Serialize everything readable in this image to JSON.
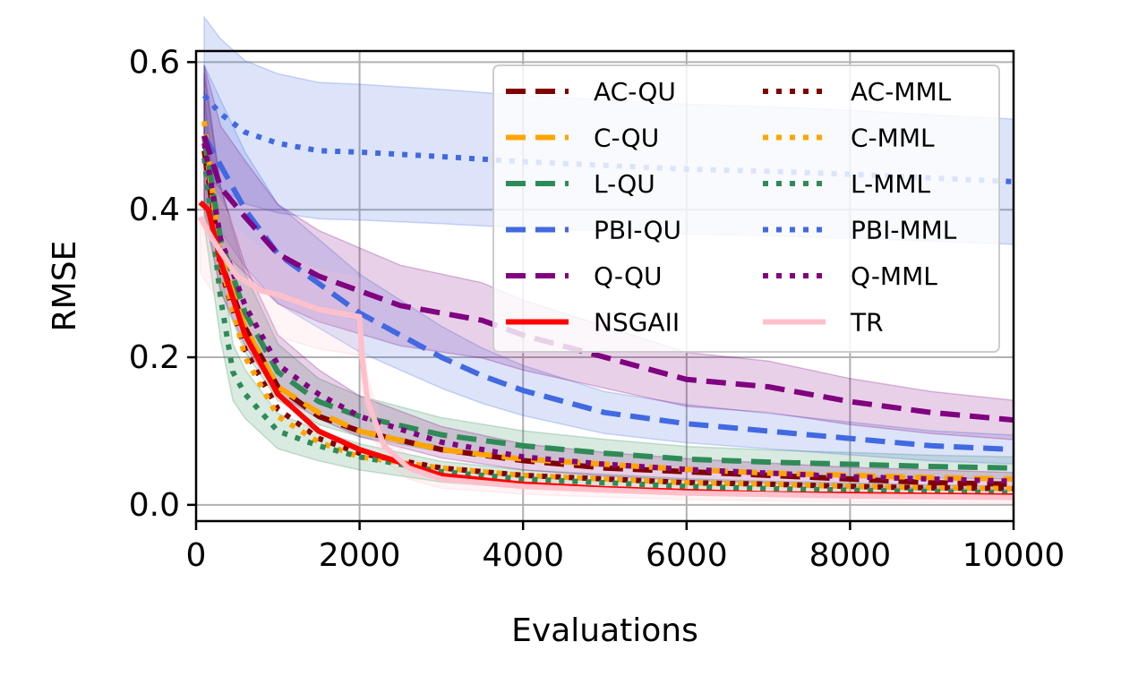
{
  "chart_data": {
    "type": "line",
    "title": "",
    "xlabel": "Evaluations",
    "ylabel": "RMSE",
    "xlim": [
      0,
      10000
    ],
    "ylim": [
      -0.022,
      0.615
    ],
    "xticks": [
      0,
      2000,
      4000,
      6000,
      8000,
      10000
    ],
    "yticks": [
      0.0,
      0.2,
      0.4,
      0.6
    ],
    "xtick_labels": [
      "0",
      "2000",
      "4000",
      "6000",
      "8000",
      "10000"
    ],
    "ytick_labels": [
      "0.0",
      "0.2",
      "0.4",
      "0.6"
    ],
    "grid": true,
    "legend_position": "top-right",
    "legend_columns": 2,
    "series": [
      {
        "name": "AC-QU",
        "color": "#800000",
        "dash": "dashed",
        "band": false,
        "x": [
          100,
          300,
          600,
          1000,
          1500,
          2000,
          3000,
          4000,
          5000,
          6000,
          7000,
          8000,
          9000,
          10000
        ],
        "y": [
          0.48,
          0.33,
          0.24,
          0.16,
          0.12,
          0.1,
          0.075,
          0.06,
          0.05,
          0.045,
          0.04,
          0.035,
          0.03,
          0.028
        ]
      },
      {
        "name": "AC-MML",
        "color": "#800000",
        "dash": "dotted",
        "band": false,
        "x": [
          100,
          300,
          600,
          1000,
          1500,
          2000,
          3000,
          4000,
          5000,
          6000,
          7000,
          8000,
          9000,
          10000
        ],
        "y": [
          0.5,
          0.32,
          0.21,
          0.13,
          0.09,
          0.07,
          0.05,
          0.04,
          0.035,
          0.03,
          0.028,
          0.025,
          0.023,
          0.022
        ]
      },
      {
        "name": "C-QU",
        "color": "#ffa500",
        "dash": "dashed",
        "band": false,
        "x": [
          100,
          300,
          600,
          1000,
          1500,
          2000,
          3000,
          4000,
          5000,
          6000,
          7000,
          8000,
          9000,
          10000
        ],
        "y": [
          0.5,
          0.34,
          0.24,
          0.16,
          0.125,
          0.1,
          0.075,
          0.062,
          0.055,
          0.048,
          0.043,
          0.04,
          0.037,
          0.035
        ]
      },
      {
        "name": "C-MML",
        "color": "#ffa500",
        "dash": "dotted",
        "band": false,
        "x": [
          100,
          300,
          600,
          1000,
          1500,
          2000,
          3000,
          4000,
          5000,
          6000,
          7000,
          8000,
          9000,
          10000
        ],
        "y": [
          0.52,
          0.33,
          0.2,
          0.12,
          0.085,
          0.065,
          0.05,
          0.04,
          0.035,
          0.03,
          0.028,
          0.025,
          0.023,
          0.022
        ]
      },
      {
        "name": "L-QU",
        "color": "#2e8b57",
        "dash": "dashed",
        "band": true,
        "x": [
          100,
          300,
          600,
          1000,
          1500,
          2000,
          3000,
          4000,
          5000,
          6000,
          7000,
          8000,
          9000,
          10000
        ],
        "y": [
          0.5,
          0.36,
          0.26,
          0.18,
          0.14,
          0.12,
          0.095,
          0.08,
          0.07,
          0.062,
          0.058,
          0.055,
          0.052,
          0.05
        ]
      },
      {
        "name": "L-MML",
        "color": "#2e8b57",
        "dash": "dotted",
        "band": true,
        "x": [
          100,
          300,
          450,
          600,
          1000,
          1500,
          2000,
          3000,
          4000,
          5000,
          6000,
          7000,
          8000,
          9000,
          10000
        ],
        "y": [
          0.47,
          0.28,
          0.18,
          0.15,
          0.1,
          0.08,
          0.065,
          0.045,
          0.035,
          0.03,
          0.025,
          0.022,
          0.02,
          0.018,
          0.016
        ]
      },
      {
        "name": "PBI-QU",
        "color": "#4169e1",
        "dash": "dashed",
        "band": true,
        "x": [
          100,
          300,
          600,
          1000,
          1500,
          2000,
          2500,
          3000,
          3500,
          4000,
          5000,
          6000,
          7000,
          8000,
          9000,
          10000
        ],
        "y": [
          0.5,
          0.46,
          0.4,
          0.34,
          0.3,
          0.26,
          0.23,
          0.2,
          0.175,
          0.155,
          0.125,
          0.11,
          0.1,
          0.09,
          0.08,
          0.075
        ]
      },
      {
        "name": "PBI-MML",
        "color": "#4169e1",
        "dash": "dotted",
        "band": true,
        "x": [
          100,
          300,
          600,
          1000,
          1500,
          2000,
          3000,
          4000,
          5000,
          6000,
          7000,
          8000,
          9000,
          10000
        ],
        "y": [
          0.555,
          0.53,
          0.505,
          0.49,
          0.48,
          0.478,
          0.472,
          0.465,
          0.46,
          0.455,
          0.452,
          0.448,
          0.443,
          0.438
        ]
      },
      {
        "name": "Q-QU",
        "color": "#800080",
        "dash": "dashed",
        "band": true,
        "x": [
          100,
          300,
          600,
          1000,
          1500,
          2000,
          2500,
          3000,
          3500,
          4000,
          5000,
          6000,
          7000,
          8000,
          9000,
          10000
        ],
        "y": [
          0.5,
          0.43,
          0.39,
          0.34,
          0.31,
          0.29,
          0.27,
          0.26,
          0.25,
          0.23,
          0.2,
          0.17,
          0.16,
          0.14,
          0.125,
          0.115
        ]
      },
      {
        "name": "Q-MML",
        "color": "#800080",
        "dash": "dotted",
        "band": true,
        "x": [
          100,
          300,
          600,
          1000,
          1500,
          2000,
          3000,
          4000,
          5000,
          6000,
          7000,
          8000,
          9000,
          10000
        ],
        "y": [
          0.49,
          0.36,
          0.27,
          0.19,
          0.15,
          0.12,
          0.085,
          0.065,
          0.055,
          0.048,
          0.043,
          0.038,
          0.035,
          0.032
        ]
      },
      {
        "name": "NSGAII",
        "color": "#ff0000",
        "dash": "solid",
        "band": false,
        "x": [
          50,
          150,
          300,
          600,
          1000,
          1500,
          2000,
          3000,
          4000,
          5000,
          6000,
          7000,
          8000,
          9000,
          10000
        ],
        "y": [
          0.41,
          0.4,
          0.33,
          0.23,
          0.15,
          0.1,
          0.075,
          0.04,
          0.028,
          0.022,
          0.018,
          0.015,
          0.014,
          0.013,
          0.012
        ]
      },
      {
        "name": "TR",
        "color": "#ffc0cb",
        "dash": "solid",
        "band": true,
        "x": [
          50,
          200,
          500,
          800,
          1000,
          1500,
          2000,
          2030,
          2100,
          2300,
          2600,
          3000,
          4000,
          5000,
          6000,
          7000,
          8000,
          9000,
          10000
        ],
        "y": [
          0.39,
          0.36,
          0.31,
          0.29,
          0.285,
          0.265,
          0.255,
          0.2,
          0.14,
          0.08,
          0.05,
          0.035,
          0.025,
          0.02,
          0.016,
          0.014,
          0.012,
          0.011,
          0.01
        ]
      }
    ]
  }
}
